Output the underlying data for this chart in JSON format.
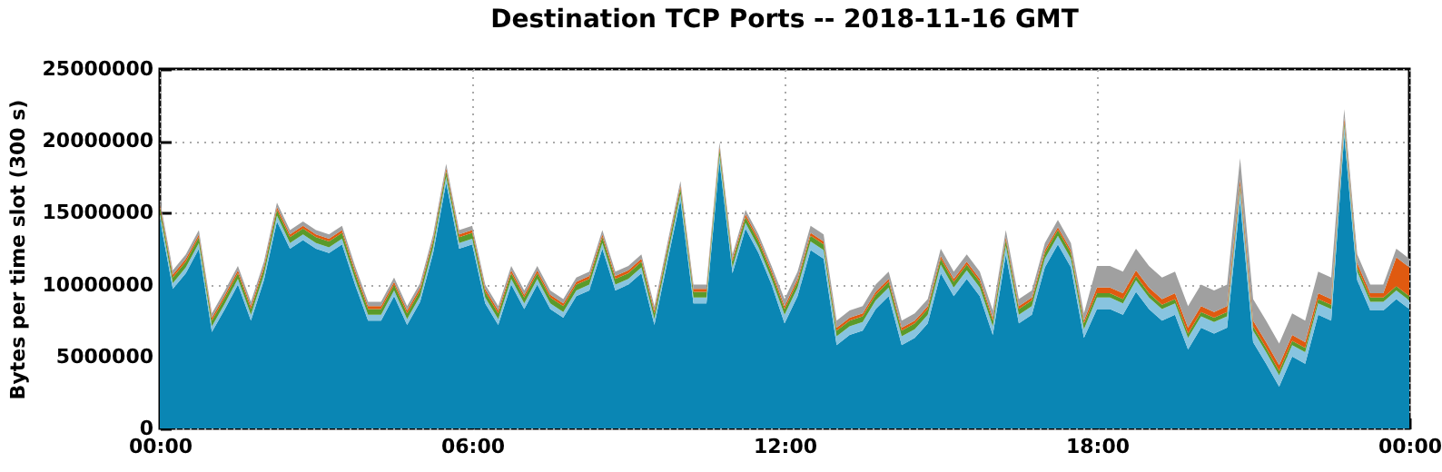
{
  "chart_data": {
    "type": "area",
    "stacked": true,
    "title": "Destination TCP Ports -- 2018-11-16 GMT",
    "ylabel": "Bytes per time slot (300 s)",
    "x": [
      0,
      0.25,
      0.5,
      0.75,
      1,
      1.25,
      1.5,
      1.75,
      2,
      2.25,
      2.5,
      2.75,
      3,
      3.25,
      3.5,
      3.75,
      4,
      4.25,
      4.5,
      4.75,
      5,
      5.25,
      5.5,
      5.75,
      6,
      6.25,
      6.5,
      6.75,
      7,
      7.25,
      7.5,
      7.75,
      8,
      8.25,
      8.5,
      8.75,
      9,
      9.25,
      9.5,
      9.75,
      10,
      10.25,
      10.5,
      10.75,
      11,
      11.25,
      11.5,
      11.75,
      12,
      12.25,
      12.5,
      12.75,
      13,
      13.25,
      13.5,
      13.75,
      14,
      14.25,
      14.5,
      14.75,
      15,
      15.25,
      15.5,
      15.75,
      16,
      16.25,
      16.5,
      16.75,
      17,
      17.25,
      17.5,
      17.75,
      18,
      18.25,
      18.5,
      18.75,
      19,
      19.25,
      19.5,
      19.75,
      20,
      20.25,
      20.5,
      20.75,
      21,
      21.25,
      21.5,
      21.75,
      22,
      22.25,
      22.5,
      22.75,
      23,
      23.25,
      23.5,
      23.75,
      24
    ],
    "xlim": [
      0,
      24
    ],
    "xticks": [
      {
        "value": 0,
        "label": "00:00"
      },
      {
        "value": 6,
        "label": "06:00"
      },
      {
        "value": 12,
        "label": "12:00"
      },
      {
        "value": 18,
        "label": "18:00"
      },
      {
        "value": 24,
        "label": "00:00"
      }
    ],
    "ylim": [
      0,
      25000000
    ],
    "yticks": [
      0,
      5000000,
      10000000,
      15000000,
      20000000,
      25000000
    ],
    "grid": true,
    "series": [
      {
        "color": "#0a86b4",
        "values": [
          14600000,
          9700000,
          10800000,
          12500000,
          6700000,
          8300000,
          10000000,
          7500000,
          10300000,
          14400000,
          12500000,
          13100000,
          12500000,
          12200000,
          12800000,
          10000000,
          7500000,
          7500000,
          9200000,
          7200000,
          8800000,
          12200000,
          17100000,
          12500000,
          12800000,
          8700000,
          7200000,
          10000000,
          8300000,
          10000000,
          8300000,
          7700000,
          9200000,
          9600000,
          12500000,
          9600000,
          10000000,
          10800000,
          7200000,
          11600000,
          15900000,
          8700000,
          8700000,
          18600000,
          10800000,
          13900000,
          12200000,
          10000000,
          7300000,
          9200000,
          12400000,
          11800000,
          5800000,
          6500000,
          6800000,
          8300000,
          9200000,
          5800000,
          6300000,
          7300000,
          10800000,
          9200000,
          10400000,
          9200000,
          6500000,
          12100000,
          7300000,
          7900000,
          11200000,
          12800000,
          11200000,
          6300000,
          8300000,
          8300000,
          7900000,
          9500000,
          8300000,
          7500000,
          7900000,
          5500000,
          7000000,
          6600000,
          7000000,
          15800000,
          6000000,
          4500000,
          2900000,
          5000000,
          4500000,
          7900000,
          7500000,
          20400000,
          10300000,
          8200000,
          8200000,
          9000000,
          8300000
        ]
      },
      {
        "color": "#88c4e0",
        "values": [
          400000,
          400000,
          400000,
          400000,
          400000,
          400000,
          400000,
          400000,
          400000,
          400000,
          400000,
          400000,
          400000,
          400000,
          400000,
          400000,
          400000,
          400000,
          400000,
          400000,
          400000,
          400000,
          400000,
          400000,
          400000,
          400000,
          400000,
          400000,
          400000,
          400000,
          400000,
          400000,
          400000,
          400000,
          400000,
          400000,
          400000,
          400000,
          400000,
          400000,
          400000,
          400000,
          400000,
          400000,
          400000,
          400000,
          400000,
          400000,
          600000,
          600000,
          600000,
          600000,
          600000,
          600000,
          600000,
          600000,
          600000,
          600000,
          600000,
          600000,
          600000,
          600000,
          600000,
          600000,
          600000,
          600000,
          600000,
          600000,
          600000,
          600000,
          600000,
          600000,
          800000,
          800000,
          800000,
          800000,
          800000,
          800000,
          800000,
          800000,
          800000,
          800000,
          800000,
          800000,
          800000,
          800000,
          800000,
          800000,
          800000,
          800000,
          800000,
          600000,
          600000,
          600000,
          600000,
          600000,
          600000
        ]
      },
      {
        "color": "#5a9a2a",
        "values": [
          400000,
          400000,
          400000,
          400000,
          400000,
          400000,
          400000,
          400000,
          400000,
          400000,
          400000,
          400000,
          400000,
          400000,
          400000,
          400000,
          400000,
          400000,
          400000,
          400000,
          400000,
          400000,
          400000,
          400000,
          400000,
          400000,
          400000,
          400000,
          400000,
          400000,
          400000,
          400000,
          400000,
          400000,
          400000,
          400000,
          400000,
          400000,
          400000,
          400000,
          400000,
          400000,
          400000,
          400000,
          400000,
          400000,
          400000,
          400000,
          400000,
          400000,
          400000,
          400000,
          400000,
          400000,
          400000,
          400000,
          400000,
          400000,
          400000,
          400000,
          400000,
          400000,
          400000,
          400000,
          400000,
          400000,
          400000,
          400000,
          400000,
          400000,
          400000,
          400000,
          300000,
          300000,
          300000,
          300000,
          300000,
          300000,
          300000,
          300000,
          300000,
          300000,
          300000,
          300000,
          300000,
          300000,
          300000,
          300000,
          300000,
          300000,
          300000,
          300000,
          300000,
          300000,
          300000,
          300000,
          300000
        ]
      },
      {
        "color": "#e05a10",
        "values": [
          200000,
          200000,
          200000,
          200000,
          200000,
          200000,
          200000,
          200000,
          200000,
          200000,
          200000,
          200000,
          200000,
          200000,
          200000,
          200000,
          200000,
          200000,
          200000,
          200000,
          200000,
          200000,
          200000,
          200000,
          200000,
          200000,
          200000,
          200000,
          200000,
          200000,
          200000,
          200000,
          200000,
          200000,
          200000,
          200000,
          200000,
          200000,
          200000,
          200000,
          200000,
          200000,
          200000,
          200000,
          200000,
          200000,
          200000,
          200000,
          200000,
          200000,
          200000,
          200000,
          200000,
          200000,
          200000,
          200000,
          200000,
          200000,
          200000,
          200000,
          200000,
          200000,
          200000,
          200000,
          200000,
          200000,
          200000,
          200000,
          200000,
          200000,
          200000,
          200000,
          400000,
          400000,
          400000,
          400000,
          400000,
          400000,
          400000,
          400000,
          400000,
          400000,
          400000,
          400000,
          400000,
          400000,
          400000,
          400000,
          400000,
          400000,
          400000,
          300000,
          300000,
          300000,
          300000,
          2000000,
          2000000
        ]
      },
      {
        "color": "#a0a0a0",
        "values": [
          300000,
          300000,
          300000,
          300000,
          300000,
          300000,
          300000,
          300000,
          300000,
          300000,
          300000,
          300000,
          300000,
          300000,
          300000,
          300000,
          300000,
          300000,
          300000,
          300000,
          300000,
          300000,
          300000,
          300000,
          300000,
          300000,
          300000,
          300000,
          300000,
          300000,
          300000,
          300000,
          300000,
          300000,
          300000,
          300000,
          300000,
          300000,
          300000,
          300000,
          300000,
          300000,
          300000,
          300000,
          300000,
          300000,
          300000,
          300000,
          500000,
          500000,
          500000,
          500000,
          500000,
          500000,
          500000,
          500000,
          500000,
          500000,
          500000,
          500000,
          500000,
          500000,
          500000,
          500000,
          500000,
          500000,
          500000,
          500000,
          500000,
          500000,
          500000,
          500000,
          1500000,
          1500000,
          1500000,
          1500000,
          1500000,
          1500000,
          1500000,
          1500000,
          1500000,
          1500000,
          1500000,
          1500000,
          1500000,
          1500000,
          1500000,
          1500000,
          1500000,
          1500000,
          1500000,
          600000,
          600000,
          600000,
          600000,
          600000,
          600000
        ]
      }
    ]
  }
}
